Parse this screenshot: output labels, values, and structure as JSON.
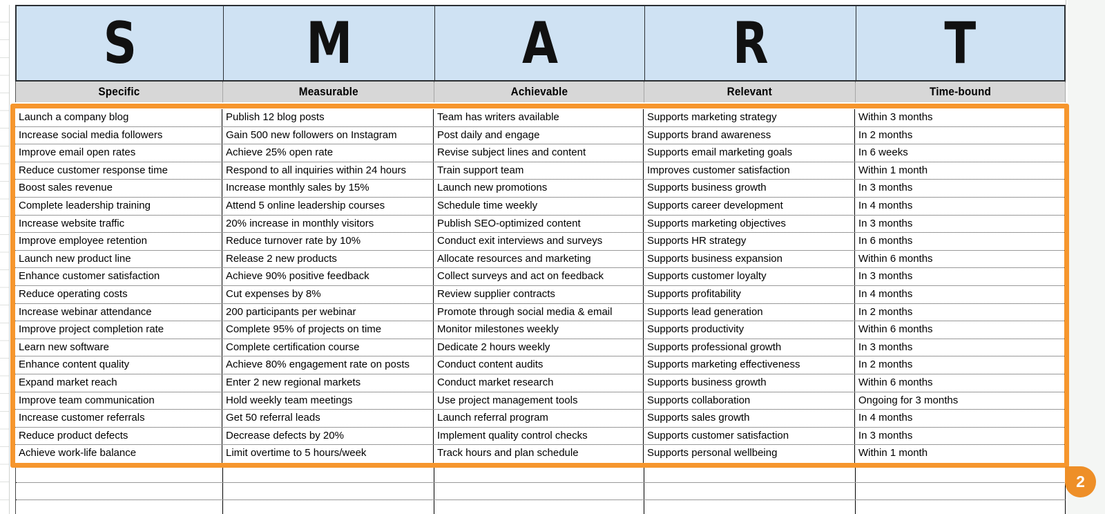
{
  "sheet": {
    "letters": [
      "S",
      "M",
      "A",
      "R",
      "T"
    ],
    "headers": [
      "Specific",
      "Measurable",
      "Achievable",
      "Relevant",
      "Time-bound"
    ],
    "rows": [
      [
        "Launch a company blog",
        "Publish 12 blog posts",
        "Team has writers available",
        "Supports marketing strategy",
        "Within 3 months"
      ],
      [
        "Increase social media followers",
        "Gain 500 new followers on Instagram",
        "Post daily and engage",
        "Supports brand awareness",
        "In 2 months"
      ],
      [
        "Improve email open rates",
        "Achieve 25% open rate",
        "Revise subject lines and content",
        "Supports email marketing goals",
        "In 6 weeks"
      ],
      [
        "Reduce customer response time",
        "Respond to all inquiries within 24 hours",
        "Train support team",
        "Improves customer satisfaction",
        "Within 1 month"
      ],
      [
        "Boost sales revenue",
        "Increase monthly sales by 15%",
        "Launch new promotions",
        "Supports business growth",
        "In 3 months"
      ],
      [
        "Complete leadership training",
        "Attend 5 online leadership courses",
        "Schedule time weekly",
        "Supports career development",
        "In 4 months"
      ],
      [
        "Increase website traffic",
        "20% increase in monthly visitors",
        "Publish SEO-optimized content",
        "Supports marketing objectives",
        "In 3 months"
      ],
      [
        "Improve employee retention",
        "Reduce turnover rate by 10%",
        "Conduct exit interviews and surveys",
        "Supports HR strategy",
        "In 6 months"
      ],
      [
        "Launch new product line",
        "Release 2 new products",
        "Allocate resources and marketing",
        "Supports business expansion",
        "Within 6 months"
      ],
      [
        "Enhance customer satisfaction",
        "Achieve 90% positive feedback",
        "Collect surveys and act on feedback",
        "Supports customer loyalty",
        "In 3 months"
      ],
      [
        "Reduce operating costs",
        "Cut expenses by 8%",
        "Review supplier contracts",
        "Supports profitability",
        "In 4 months"
      ],
      [
        "Increase webinar attendance",
        "200 participants per webinar",
        "Promote through social media & email",
        "Supports lead generation",
        "In 2 months"
      ],
      [
        "Improve project completion rate",
        "Complete 95% of projects on time",
        "Monitor milestones weekly",
        "Supports productivity",
        "Within 6 months"
      ],
      [
        "Learn new software",
        "Complete certification course",
        "Dedicate 2 hours weekly",
        "Supports professional growth",
        "In 3 months"
      ],
      [
        "Enhance content quality",
        "Achieve 80% engagement rate on posts",
        "Conduct content audits",
        "Supports marketing effectiveness",
        "In 2 months"
      ],
      [
        "Expand market reach",
        "Enter 2 new regional markets",
        "Conduct market research",
        "Supports business growth",
        "Within 6 months"
      ],
      [
        "Improve team communication",
        "Hold weekly team meetings",
        "Use project management tools",
        "Supports collaboration",
        "Ongoing for 3 months"
      ],
      [
        "Increase customer referrals",
        "Get 50 referral leads",
        "Launch referral program",
        "Supports sales growth",
        "In 4 months"
      ],
      [
        "Reduce product defects",
        "Decrease defects by 20%",
        "Implement quality control checks",
        "Supports customer satisfaction",
        "In 3 months"
      ],
      [
        "Achieve work-life balance",
        "Limit overtime to 5 hours/week",
        "Track hours and plan schedule",
        "Supports personal wellbeing",
        "Within 1 month"
      ]
    ],
    "empty_row_count": 3,
    "selection_badge": {
      "label": "2"
    },
    "colors": {
      "header_bg": "#cfe2f3",
      "subheader_bg": "#d7d7d7",
      "selection_border": "#F6962D",
      "badge_bg": "#EE8F28"
    }
  }
}
